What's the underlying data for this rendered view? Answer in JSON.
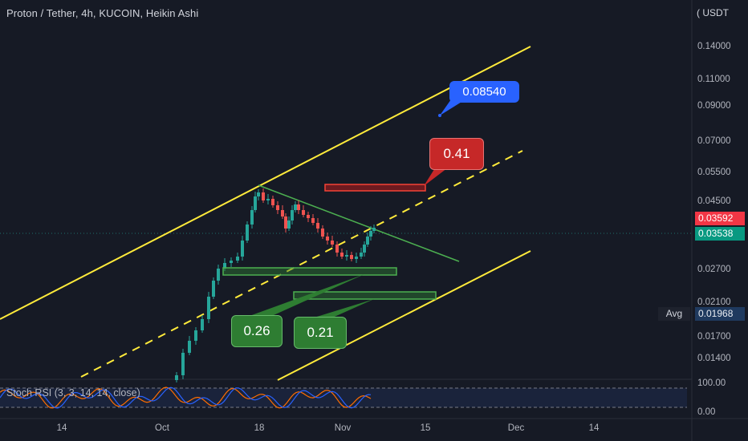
{
  "header": {
    "title": "Proton / Tether, 4h, KUCOIN, Heikin Ashi",
    "currency_label": "USDT"
  },
  "price_axis": {
    "ticks": [
      "0.14000",
      "0.11000",
      "0.09000",
      "0.07000",
      "0.05500",
      "0.04500",
      "0.02700",
      "0.02100",
      "0.01700",
      "0.01400"
    ],
    "last_price": "0.03592",
    "current_price": "0.03538",
    "avg_label": "Avg",
    "avg_value": "0.01968"
  },
  "time_axis": {
    "ticks": [
      "14",
      "Oct",
      "18",
      "Nov",
      "15",
      "Dec",
      "14"
    ]
  },
  "annotations": {
    "target_label": "0.08540",
    "resistance_label": "0.41",
    "support_label_1": "0.26",
    "support_label_2": "0.21"
  },
  "indicator": {
    "label": "Stoch RSI (3, 3, 14, 14, close)",
    "ticks": [
      "100.00",
      "0.00"
    ]
  },
  "colors": {
    "background": "#161a25",
    "bull": "#26a69a",
    "bear": "#ef5350",
    "channel": "#ffeb3b",
    "trendline": "#4caf50",
    "target_bg": "#2962ff",
    "resistance_bg": "#c62828",
    "support_bg": "#2e7d32",
    "last_price_bg": "#f23645",
    "current_price_bg": "#089981",
    "k_line": "#2962ff",
    "d_line": "#ff6d00"
  }
}
